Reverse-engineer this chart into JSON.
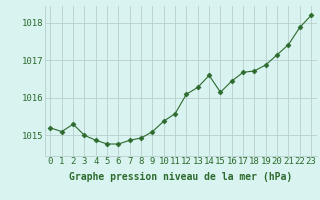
{
  "hours": [
    0,
    1,
    2,
    3,
    4,
    5,
    6,
    7,
    8,
    9,
    10,
    11,
    12,
    13,
    14,
    15,
    16,
    17,
    18,
    19,
    20,
    21,
    22,
    23
  ],
  "pressure": [
    1015.2,
    1015.1,
    1015.3,
    1015.0,
    1014.87,
    1014.77,
    1014.77,
    1014.87,
    1014.93,
    1015.1,
    1015.38,
    1015.58,
    1016.1,
    1016.28,
    1016.6,
    1016.15,
    1016.45,
    1016.68,
    1016.72,
    1016.88,
    1017.15,
    1017.42,
    1017.88,
    1018.2
  ],
  "line_color": "#2d6a2d",
  "marker": "D",
  "marker_size": 2.5,
  "background_color": "#d9f4f0",
  "grid_color": "#b8cece",
  "ylabel_ticks": [
    1015,
    1016,
    1017,
    1018
  ],
  "xlabel": "Graphe pression niveau de la mer (hPa)",
  "xlabel_fontsize": 7,
  "tick_fontsize": 6.5,
  "ylim": [
    1014.45,
    1018.45
  ],
  "xlim": [
    -0.5,
    23.5
  ]
}
